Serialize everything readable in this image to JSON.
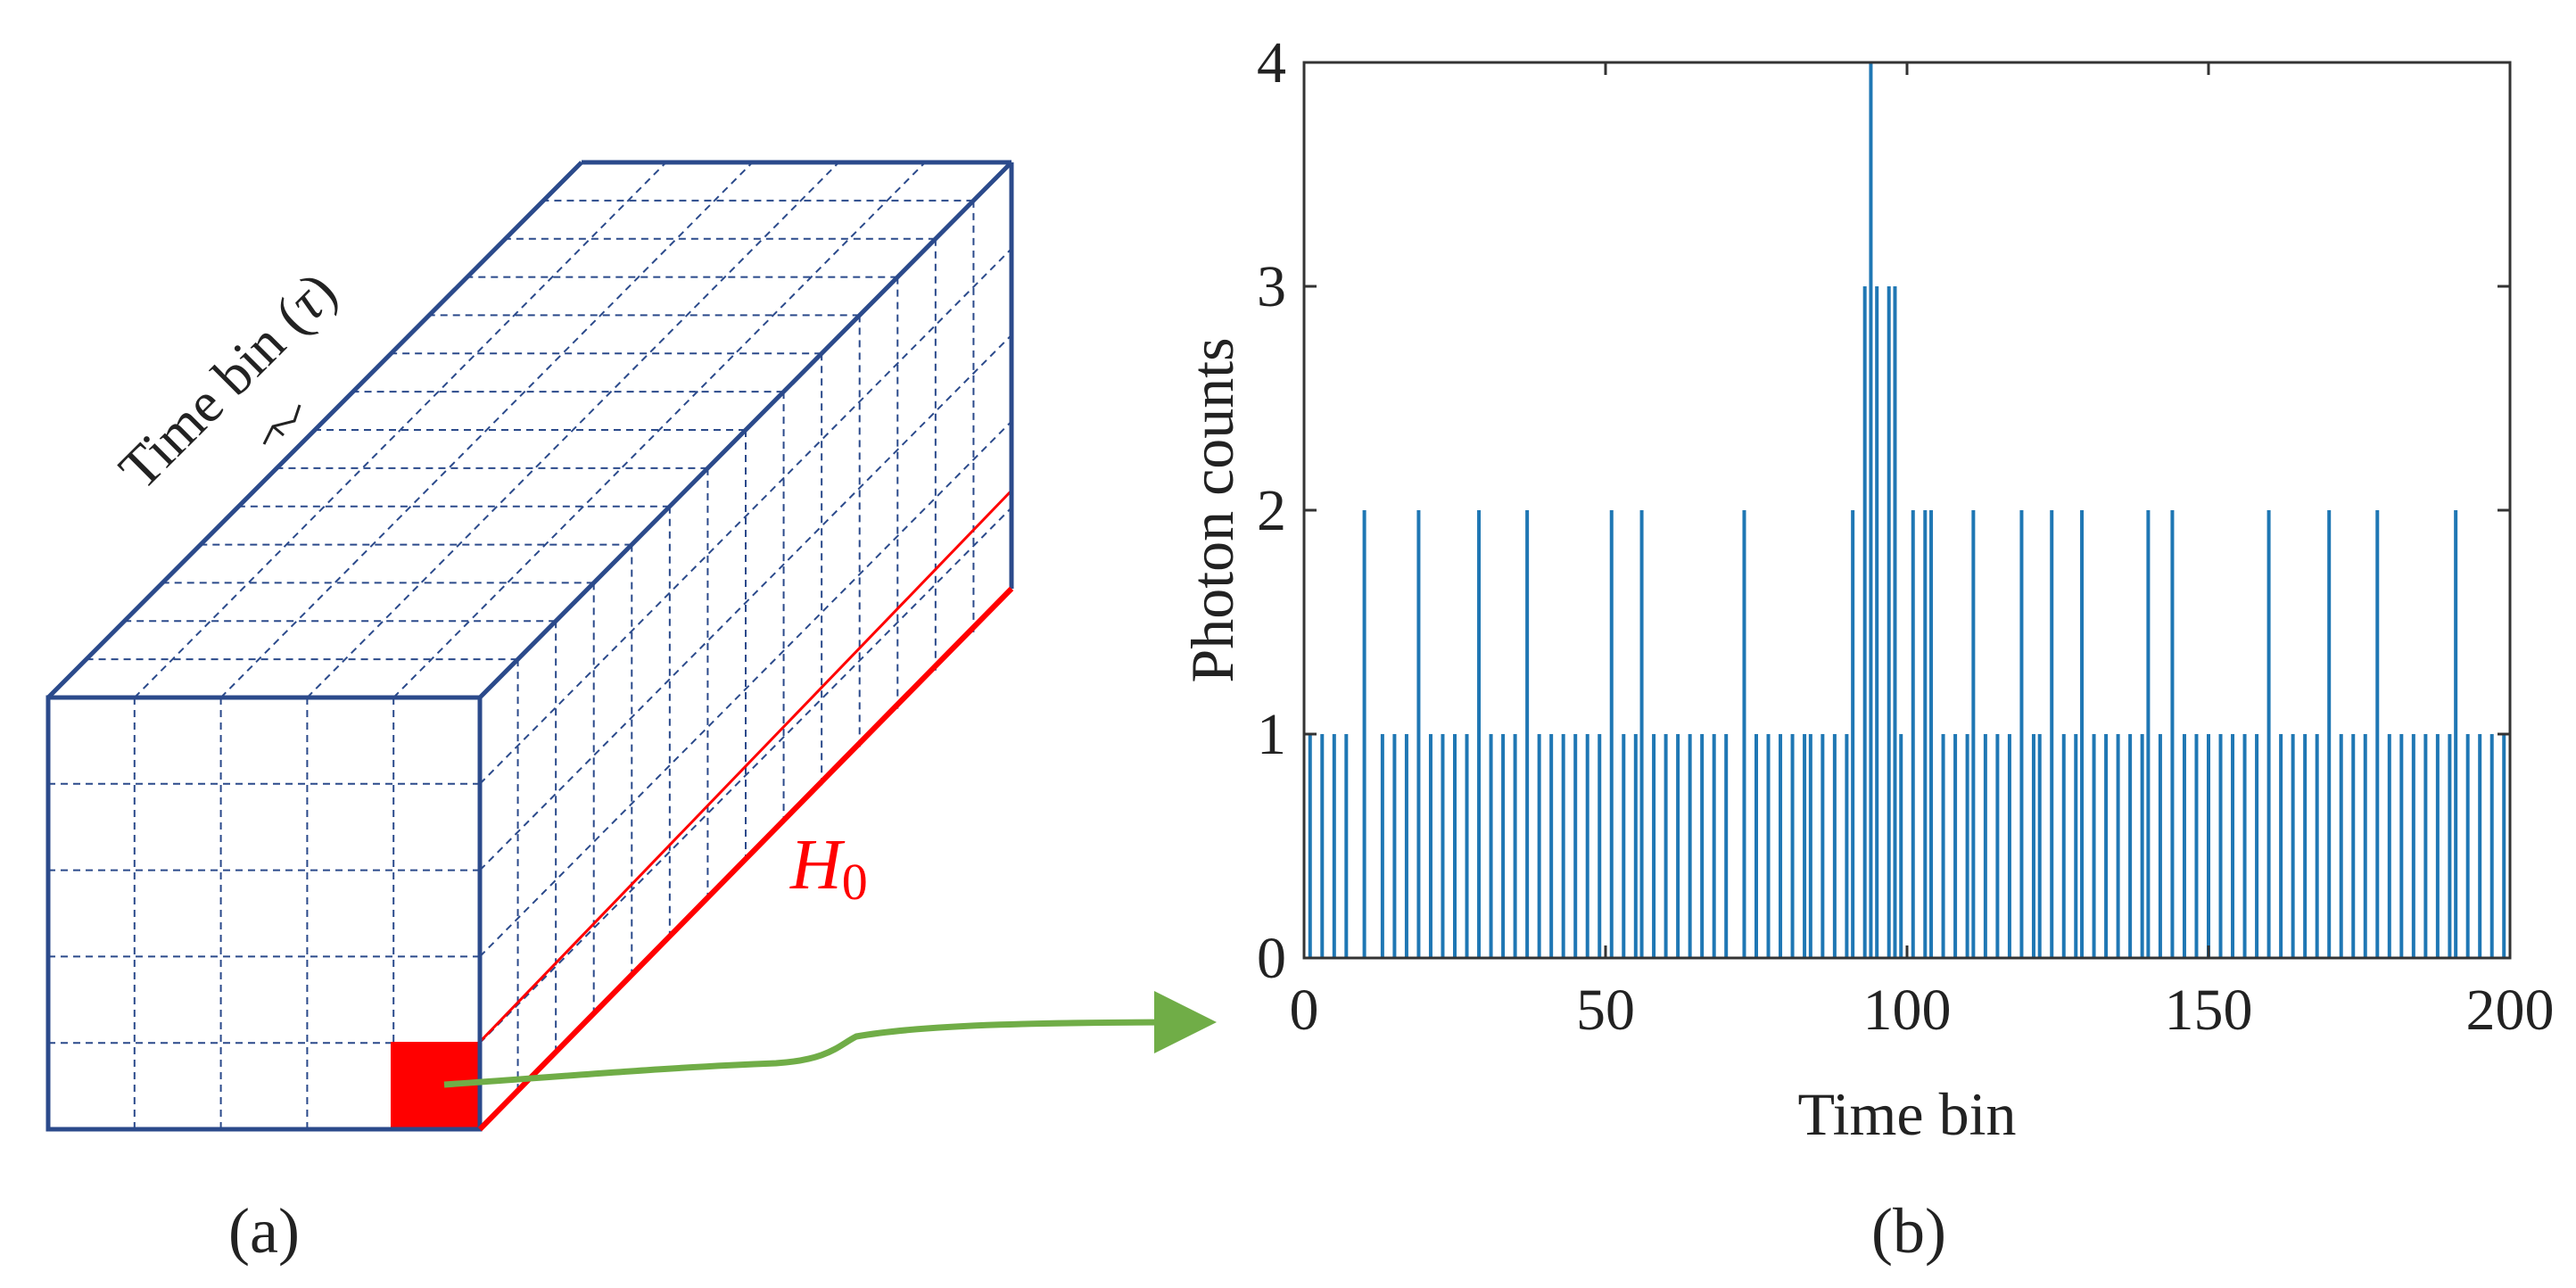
{
  "colors": {
    "cube_edge": "#2b4a8b",
    "grid": "#2b4a8b",
    "highlight": "#ff0000",
    "arrow": "#70ad47",
    "stem": "#1f77b4",
    "axis": "#333333",
    "text": "#222222"
  },
  "panel_a": {
    "caption": "(a)",
    "time_bin_label": "Time bin (",
    "tau_symbol": "τ",
    "time_bin_close": ")",
    "h0_base": "H",
    "h0_sub": "0"
  },
  "panel_b": {
    "caption": "(b)"
  },
  "chart_data": {
    "type": "stem",
    "title": "",
    "xlabel": "Time bin",
    "ylabel": "Photon counts",
    "xlim": [
      0,
      200
    ],
    "ylim": [
      0,
      4
    ],
    "xticks": [
      0,
      50,
      100,
      150,
      200
    ],
    "yticks": [
      0,
      1,
      2,
      3,
      4
    ],
    "xtick_labels": [
      "0",
      "50",
      "100",
      "150",
      "200"
    ],
    "ytick_labels": [
      "0",
      "1",
      "2",
      "3",
      "4"
    ],
    "series": [
      {
        "name": "Photon counts",
        "x": [
          1,
          3,
          5,
          7,
          10,
          13,
          15,
          17,
          19,
          21,
          23,
          25,
          27,
          29,
          31,
          33,
          35,
          37,
          39,
          41,
          43,
          45,
          47,
          49,
          51,
          53,
          55,
          56,
          58,
          60,
          62,
          64,
          66,
          68,
          70,
          73,
          75,
          77,
          79,
          81,
          83,
          84,
          86,
          88,
          90,
          91,
          93,
          94,
          95,
          97,
          98,
          99,
          101,
          103,
          104,
          106,
          108,
          110,
          111,
          113,
          115,
          117,
          119,
          121,
          122,
          124,
          126,
          128,
          129,
          131,
          133,
          135,
          137,
          139,
          140,
          142,
          144,
          146,
          148,
          150,
          152,
          154,
          156,
          158,
          160,
          162,
          164,
          166,
          168,
          170,
          172,
          174,
          176,
          178,
          180,
          182,
          184,
          186,
          188,
          190,
          191,
          193,
          195,
          197,
          199
        ],
        "y": [
          1,
          1,
          1,
          1,
          2,
          1,
          1,
          1,
          2,
          1,
          1,
          1,
          1,
          2,
          1,
          1,
          1,
          2,
          1,
          1,
          1,
          1,
          1,
          1,
          2,
          1,
          1,
          2,
          1,
          1,
          1,
          1,
          1,
          1,
          1,
          2,
          1,
          1,
          1,
          1,
          1,
          1,
          1,
          1,
          1,
          2,
          3,
          4,
          3,
          3,
          3,
          1,
          2,
          2,
          2,
          1,
          1,
          1,
          2,
          1,
          1,
          1,
          2,
          1,
          1,
          2,
          1,
          1,
          2,
          1,
          1,
          1,
          1,
          1,
          2,
          1,
          2,
          1,
          1,
          1,
          1,
          1,
          1,
          1,
          2,
          1,
          1,
          1,
          1,
          2,
          1,
          1,
          1,
          2,
          1,
          1,
          1,
          1,
          1,
          1,
          2,
          1,
          1,
          1,
          1
        ]
      }
    ]
  }
}
